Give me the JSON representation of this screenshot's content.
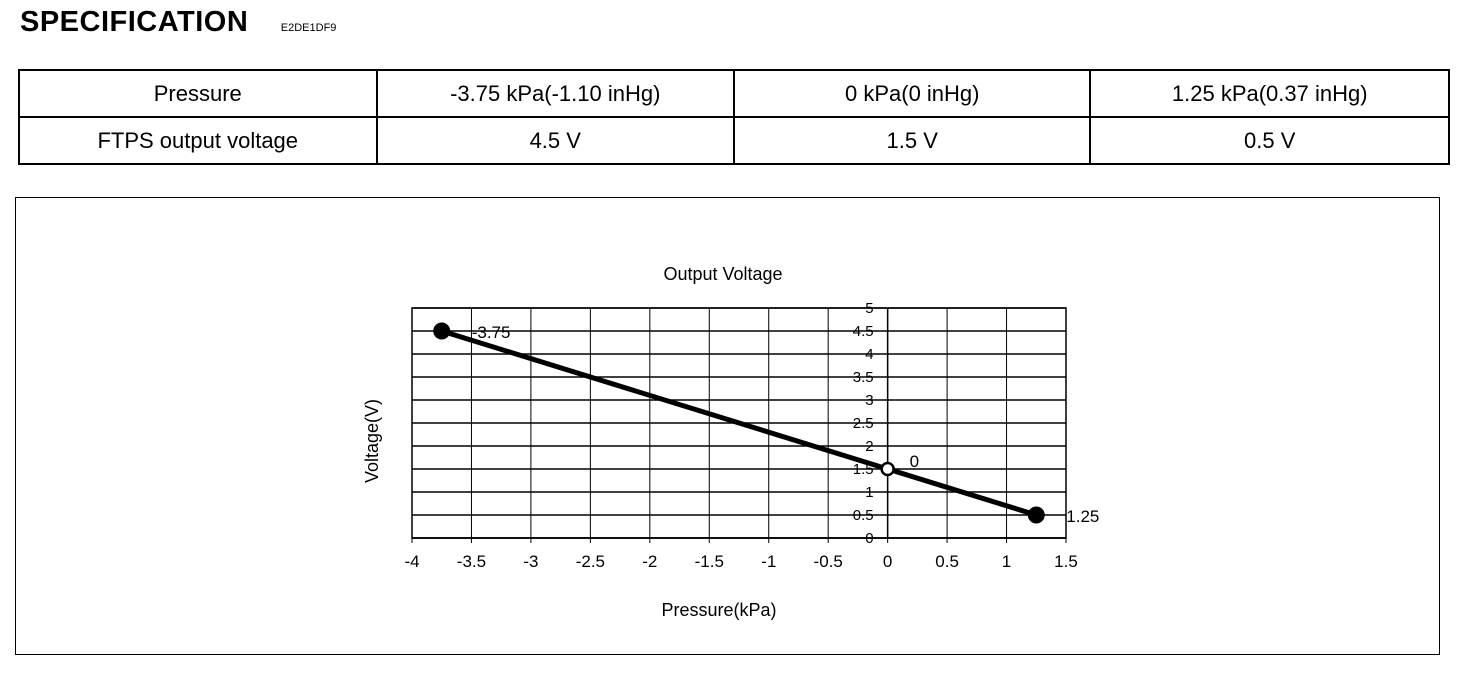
{
  "header": {
    "title": "SPECIFICATION",
    "code": "E2DE1DF9"
  },
  "spec_table": {
    "rows": [
      {
        "label": "Pressure",
        "cells": [
          "-3.75 kPa(-1.10 inHg)",
          "0 kPa(0 inHg)",
          "1.25 kPa(0.37 inHg)"
        ]
      },
      {
        "label": "FTPS output voltage",
        "cells": [
          "4.5  V",
          "1.5  V",
          "0.5  V"
        ]
      }
    ]
  },
  "chart_data": {
    "type": "line",
    "title": "Output Voltage",
    "xlabel": "Pressure(kPa)",
    "ylabel": "Voltage(V)",
    "xlim": [
      -4,
      1.5
    ],
    "ylim": [
      0,
      5
    ],
    "x_ticks": [
      "-4",
      "-3.5",
      "-3",
      "-2.5",
      "-2",
      "-1.5",
      "-1",
      "-0.5",
      "0",
      "0.5",
      "1",
      "1.5"
    ],
    "y_ticks": [
      "0",
      "0.5",
      "1",
      "1.5",
      "2",
      "2.5",
      "3",
      "3.5",
      "4",
      "4.5",
      "5"
    ],
    "grid": true,
    "series": [
      {
        "x": [
          -3.75,
          0,
          1.25
        ],
        "y": [
          4.5,
          1.5,
          0.5
        ]
      }
    ],
    "point_labels": [
      "-3.75",
      "0",
      "1.25"
    ]
  }
}
